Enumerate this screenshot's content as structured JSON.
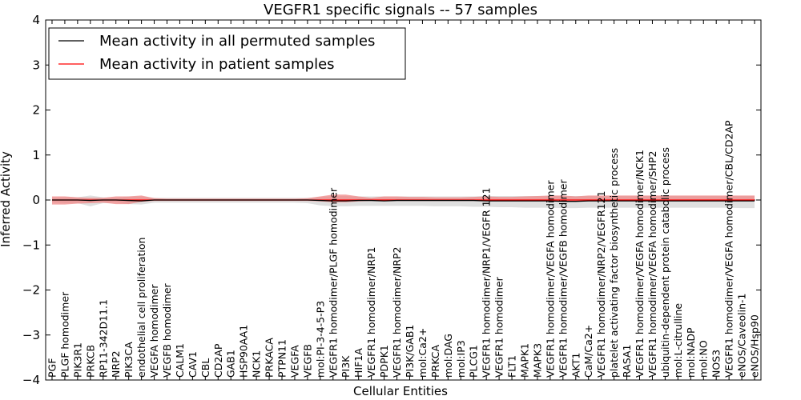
{
  "chart_data": {
    "type": "line",
    "title": "VEGFR1 specific signals -- 57 samples",
    "xlabel": "Cellular Entities",
    "ylabel": "Inferred Activity",
    "ylim": [
      -4,
      4
    ],
    "yticks": [
      -4,
      -3,
      -2,
      -1,
      0,
      1,
      2,
      3,
      4
    ],
    "ytick_labels": [
      "−4",
      "−3",
      "−2",
      "−1",
      "0",
      "1",
      "2",
      "3",
      "4"
    ],
    "legend_position": "upper-left",
    "categories": [
      "PGF",
      "PLGF homodimer",
      "PIK3R1",
      "PRKCB",
      "RP11-342D11.1",
      "NRP2",
      "PIK3CA",
      "endothelial cell proliferation",
      "VEGFA homodimer",
      "VEGFB homodimer",
      "CALM1",
      "CAV1",
      "CBL",
      "CD2AP",
      "GAB1",
      "HSP90AA1",
      "NCK1",
      "PRKACA",
      "PTPN11",
      "VEGFA",
      "VEGFB",
      "mol:PI-3-4-5-P3",
      "VEGFR1 homodimer/PLGF homodimer",
      "PI3K",
      "HIF1A",
      "VEGFR1 homodimer/NRP1",
      "PDPK1",
      "VEGFR1 homodimer/NRP2",
      "PI3K/GAB1",
      "mol:Ca2+",
      "PRKCA",
      "mol:DAG",
      "mol:IP3",
      "PLCG1",
      "VEGFR1 homodimer/NRP1/VEGFR 121",
      "VEGFR1 homodimer",
      "FLT1",
      "MAPK1",
      "MAPK3",
      "VEGFR1 homodimer/VEGFA homodimer",
      "VEGFR1 homodimer/VEGFB homodimer",
      "AKT1",
      "CaM/Ca2+",
      "VEGFR1 homodimer/NRP2/VEGFR121",
      "platelet activating factor biosynthetic process",
      "RASA1",
      "VEGFR1 homodimer/VEGFA homodimer/NCK1",
      "VEGFR1 homodimer/VEGFA homodimer/SHP2",
      "ubiquitin-dependent protein catabolic process",
      "mol:L-citrulline",
      "mol:NADP",
      "mol:NO",
      "NOS3",
      "VEGFR1 homodimer/VEGFA homodimer/CBL/CD2AP",
      "eNOS/Caveolin-1",
      "eNOS/Hsp90"
    ],
    "series": [
      {
        "name": "Mean activity in all permuted samples",
        "color": "#000000",
        "values": [
          0.0,
          0.0,
          0.0,
          -0.01,
          0.0,
          0.0,
          -0.01,
          -0.02,
          0.0,
          0.0,
          0.0,
          0.0,
          0.0,
          0.0,
          0.0,
          0.0,
          0.0,
          0.0,
          0.0,
          0.0,
          0.0,
          -0.01,
          -0.02,
          -0.02,
          -0.01,
          -0.01,
          -0.02,
          -0.01,
          -0.01,
          -0.01,
          -0.01,
          -0.01,
          -0.01,
          -0.01,
          -0.02,
          -0.02,
          -0.02,
          -0.02,
          -0.02,
          -0.02,
          -0.03,
          -0.03,
          -0.02,
          -0.02,
          -0.02,
          -0.02,
          -0.02,
          -0.02,
          -0.02,
          -0.02,
          -0.02,
          -0.02,
          -0.02,
          -0.02,
          -0.02,
          -0.02
        ],
        "band_low": [
          -0.05,
          -0.07,
          -0.07,
          -0.14,
          -0.07,
          -0.05,
          -0.09,
          -0.1,
          -0.06,
          -0.06,
          -0.06,
          -0.06,
          -0.06,
          -0.06,
          -0.06,
          -0.06,
          -0.06,
          -0.06,
          -0.06,
          -0.06,
          -0.07,
          -0.12,
          -0.14,
          -0.14,
          -0.13,
          -0.13,
          -0.13,
          -0.13,
          -0.13,
          -0.13,
          -0.14,
          -0.14,
          -0.14,
          -0.15,
          -0.15,
          -0.16,
          -0.16,
          -0.17,
          -0.17,
          -0.17,
          -0.18,
          -0.18,
          -0.17,
          -0.17,
          -0.17,
          -0.17,
          -0.17,
          -0.17,
          -0.17,
          -0.17,
          -0.17,
          -0.17,
          -0.17,
          -0.17,
          -0.18,
          -0.18
        ],
        "band_high": [
          0.05,
          0.06,
          0.06,
          0.1,
          0.06,
          0.05,
          0.08,
          0.08,
          0.05,
          0.05,
          0.05,
          0.05,
          0.05,
          0.05,
          0.05,
          0.05,
          0.05,
          0.05,
          0.05,
          0.05,
          0.05,
          0.07,
          0.09,
          0.09,
          0.08,
          0.08,
          0.08,
          0.08,
          0.08,
          0.08,
          0.08,
          0.08,
          0.08,
          0.08,
          0.09,
          0.09,
          0.09,
          0.09,
          0.09,
          0.09,
          0.09,
          0.09,
          0.09,
          0.09,
          0.09,
          0.09,
          0.09,
          0.09,
          0.09,
          0.09,
          0.09,
          0.09,
          0.09,
          0.09,
          0.09,
          0.09
        ],
        "band_color": "#d9d9d9"
      },
      {
        "name": "Mean activity in patient samples",
        "color": "#ff0000",
        "values": [
          0.0,
          0.0,
          0.0,
          0.0,
          0.0,
          0.0,
          0.0,
          0.0,
          0.0,
          0.0,
          0.0,
          0.0,
          0.0,
          0.0,
          0.0,
          0.0,
          0.0,
          0.0,
          0.0,
          0.0,
          0.0,
          0.0,
          0.0,
          0.0,
          0.0,
          0.0,
          0.0,
          0.0,
          0.0,
          0.0,
          0.0,
          0.0,
          0.0,
          0.0,
          0.0,
          0.0,
          0.0,
          0.0,
          0.0,
          0.0,
          0.0,
          0.0,
          0.0,
          0.0,
          0.0,
          0.0,
          0.0,
          0.0,
          0.0,
          0.0,
          0.0,
          0.0,
          0.0,
          0.0,
          0.0,
          0.0
        ],
        "band_low": [
          -0.1,
          -0.1,
          -0.08,
          -0.07,
          -0.06,
          -0.09,
          -0.09,
          -0.04,
          -0.02,
          -0.02,
          -0.02,
          -0.02,
          -0.02,
          -0.02,
          -0.02,
          -0.02,
          -0.02,
          -0.02,
          -0.02,
          -0.02,
          -0.02,
          -0.03,
          -0.05,
          -0.05,
          -0.03,
          -0.02,
          -0.02,
          -0.02,
          -0.02,
          -0.02,
          -0.02,
          -0.02,
          -0.02,
          -0.02,
          -0.02,
          -0.02,
          -0.02,
          -0.02,
          -0.02,
          -0.02,
          -0.02,
          -0.02,
          -0.02,
          -0.02,
          -0.02,
          -0.02,
          -0.02,
          -0.02,
          -0.02,
          -0.02,
          -0.02,
          -0.02,
          -0.02,
          -0.02,
          -0.02,
          -0.02
        ],
        "band_high": [
          0.08,
          0.08,
          0.06,
          0.05,
          0.05,
          0.08,
          0.08,
          0.1,
          0.04,
          0.03,
          0.03,
          0.03,
          0.03,
          0.03,
          0.03,
          0.03,
          0.03,
          0.03,
          0.03,
          0.03,
          0.04,
          0.08,
          0.12,
          0.12,
          0.08,
          0.05,
          0.08,
          0.08,
          0.07,
          0.07,
          0.06,
          0.06,
          0.06,
          0.07,
          0.08,
          0.07,
          0.07,
          0.08,
          0.09,
          0.1,
          0.1,
          0.08,
          0.1,
          0.1,
          0.1,
          0.1,
          0.1,
          0.1,
          0.1,
          0.1,
          0.1,
          0.1,
          0.1,
          0.1,
          0.1,
          0.1
        ],
        "band_color": "#f08080"
      }
    ]
  }
}
